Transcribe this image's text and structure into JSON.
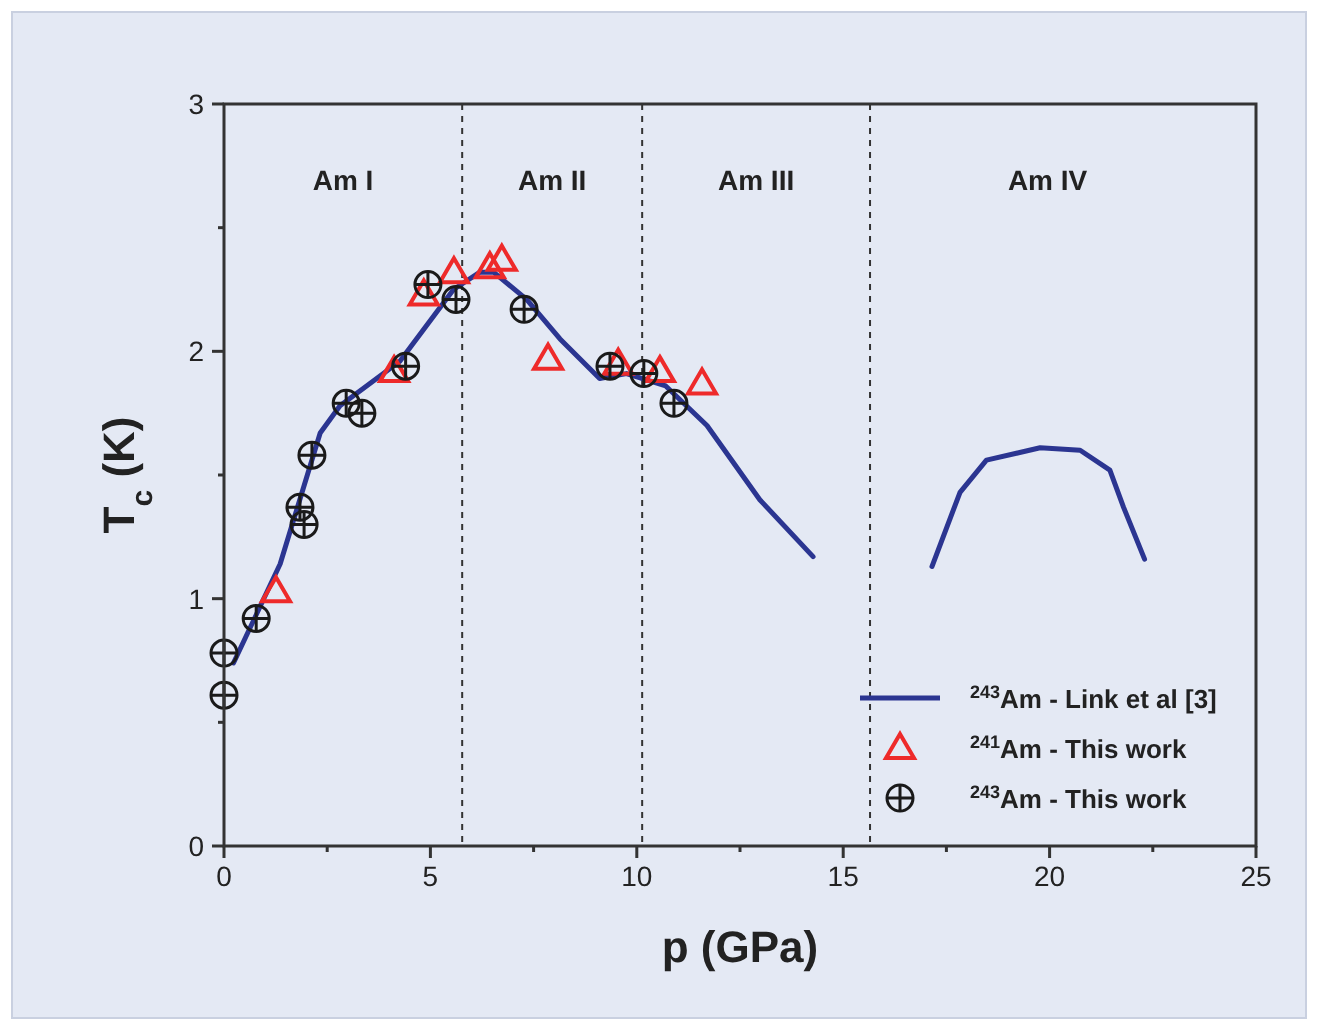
{
  "chart_data": {
    "type": "scatter",
    "xlabel": "p (GPa)",
    "ylabel": "T$_{c}$ (K)",
    "xlim": [
      0,
      25
    ],
    "ylim": [
      0,
      3
    ],
    "xticks": [
      0,
      {
        "value": 2.5,
        "label": null
      },
      5,
      {
        "value": 7.5,
        "label": null
      },
      10,
      {
        "value": 12.5,
        "label": null
      },
      15,
      {
        "value": 17.5,
        "label": null
      },
      20,
      {
        "value": 22.5,
        "label": null
      },
      25
    ],
    "yticks": [
      0,
      {
        "value": 0.5,
        "label": null
      },
      1,
      {
        "value": 1.5,
        "label": null
      },
      2,
      {
        "value": 2.5,
        "label": null
      },
      3
    ],
    "grid": false,
    "legend": "bottom right",
    "series": [
      {
        "type": "line",
        "name": "$^{243}$Am  - Link et al [3]",
        "color": "#2b3591",
        "line_style": "solid",
        "marker": "none",
        "x": [
          0.23,
          1.36,
          2.33,
          2.81,
          4.26,
          5.56,
          6.2,
          6.53,
          7.33,
          8.14,
          9.1,
          9.75,
          10.7,
          11.7,
          12.98,
          14.27,
          15.7,
          17.15,
          17.83,
          18.47,
          19.77,
          20.74,
          21.46,
          21.79,
          22.3
        ],
        "values": [
          0.74,
          1.14,
          1.67,
          1.78,
          1.96,
          2.25,
          2.32,
          2.32,
          2.21,
          2.05,
          1.89,
          1.91,
          1.86,
          1.7,
          1.4,
          1.17,
          null,
          1.13,
          1.43,
          1.56,
          1.61,
          1.6,
          1.52,
          1.37,
          1.16
        ]
      },
      {
        "name": "$^{241}$Am  - This work",
        "color": "#ee2a2a",
        "marker": "triangle",
        "x": [
          1.26,
          4.12,
          4.84,
          5.57,
          6.44,
          6.73,
          7.85,
          9.55,
          10.56,
          11.58
        ],
        "values": [
          1.03,
          1.92,
          2.23,
          2.32,
          2.34,
          2.37,
          1.97,
          1.95,
          1.92,
          1.87
        ]
      },
      {
        "name": "$^{243}$Am  - This work",
        "color": "#1a1a1a",
        "marker": "circle",
        "x": [
          0,
          0,
          0.78,
          1.84,
          1.94,
          2.13,
          2.96,
          3.34,
          4.4,
          4.94,
          5.62,
          7.27,
          9.35,
          10.17,
          10.9
        ],
        "values": [
          0.61,
          0.78,
          0.92,
          1.37,
          1.3,
          1.58,
          1.79,
          1.75,
          1.94,
          2.27,
          2.21,
          2.17,
          1.94,
          1.91,
          1.79
        ]
      }
    ],
    "ref_lines": [
      {
        "axis": "x",
        "value": 5.77,
        "line_style": "dashed",
        "color": "#333333"
      },
      {
        "axis": "x",
        "value": 10.13,
        "line_style": "dashed",
        "color": "#333333"
      },
      {
        "axis": "x",
        "value": 15.65,
        "line_style": "dashed",
        "color": "#333333"
      }
    ],
    "annotations": [
      "Am I",
      "Am II",
      "Am III",
      "Am IV"
    ]
  }
}
